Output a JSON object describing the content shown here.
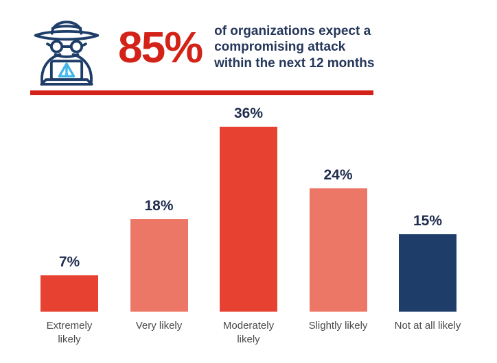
{
  "header": {
    "stat_value": "85%",
    "description": "of organizations expect a compromising attack within the next 12 months"
  },
  "colors": {
    "accent_red": "#d32318",
    "bar_red": "#e74231",
    "bar_salmon": "#ed7766",
    "bar_navy": "#1e3e69",
    "icon_navy": "#1e3e69",
    "icon_lightblue": "#41b6e8",
    "value_label": "#1f2d4d",
    "category_label": "#4a4a4a"
  },
  "icons": {
    "hacker": "hacker-with-laptop-warning-icon"
  },
  "chart_data": {
    "type": "bar",
    "categories": [
      "Extremely likely",
      "Very likely",
      "Moderately likely",
      "Slightly likely",
      "Not at all likely"
    ],
    "values": [
      7,
      18,
      36,
      24,
      15
    ],
    "value_labels": [
      "7%",
      "18%",
      "36%",
      "24%",
      "15%"
    ],
    "bar_colors": [
      "#e74231",
      "#ed7766",
      "#e74231",
      "#ed7766",
      "#1e3e69"
    ],
    "title": "85% of organizations expect a compromising attack within the next 12 months",
    "xlabel": "",
    "ylabel": "",
    "ylim": [
      0,
      40
    ],
    "grid": false,
    "legend": false
  }
}
